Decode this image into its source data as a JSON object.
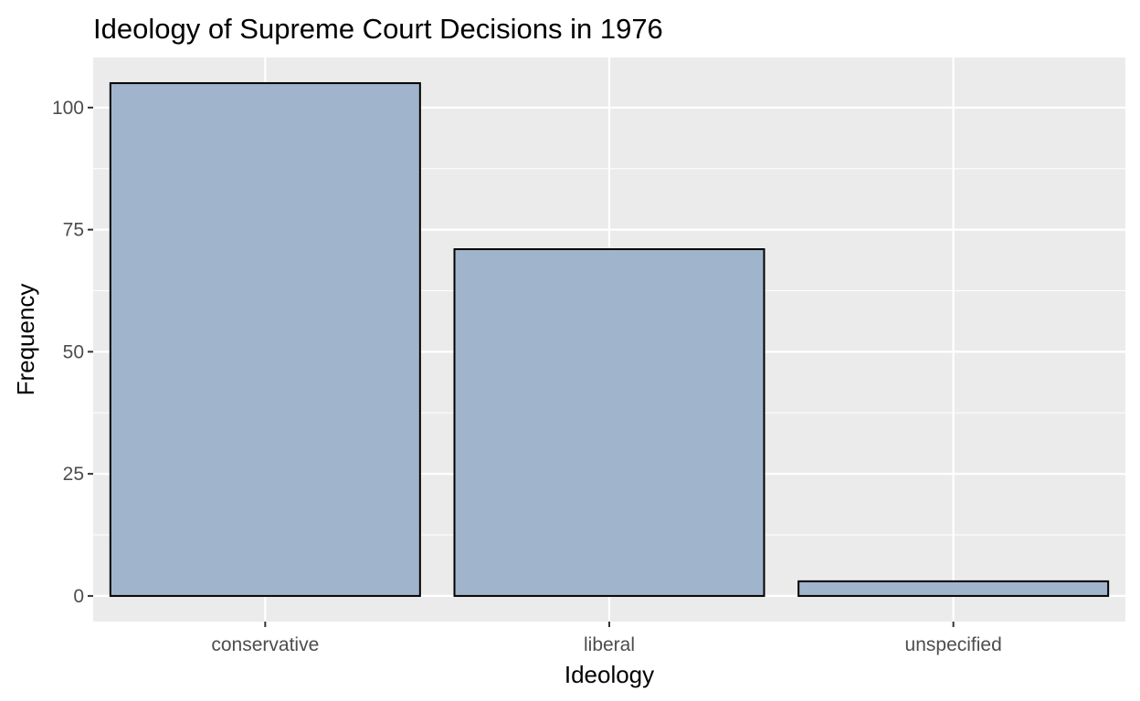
{
  "chart_data": {
    "type": "bar",
    "title": "Ideology of Supreme Court Decisions in 1976",
    "xlabel": "Ideology",
    "ylabel": "Frequency",
    "categories": [
      "conservative",
      "liberal",
      "unspecified"
    ],
    "values": [
      105,
      71,
      3
    ],
    "ylim": [
      -5.25,
      110.25
    ],
    "yticks": [
      0,
      25,
      50,
      75,
      100
    ],
    "ytick_labels": [
      "0",
      "25",
      "50",
      "75",
      "100"
    ],
    "grid": true,
    "legend": "none",
    "colors": {
      "bar_fill": "#a0b5cc",
      "bar_stroke": "#000000",
      "panel_background": "#ebebeb",
      "grid_line": "#ffffff",
      "tick_text": "#4d4d4d",
      "tick_mark": "#333333"
    }
  }
}
